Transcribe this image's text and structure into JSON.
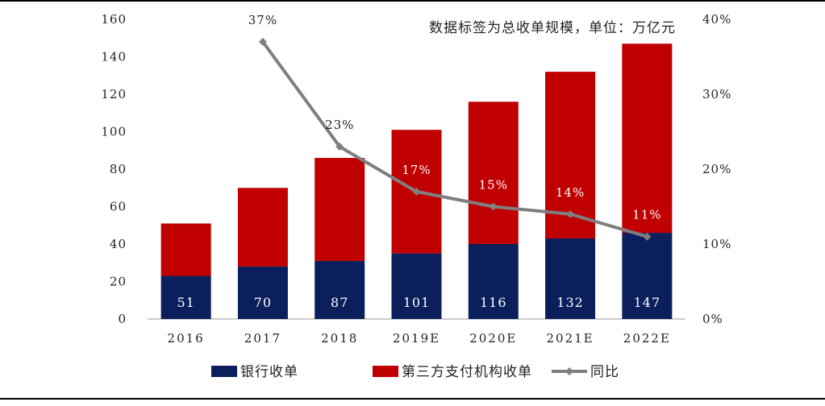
{
  "chart_data": {
    "type": "bar",
    "stacked": true,
    "note": "数据标签为总收单规模，单位：万亿元",
    "categories": [
      "2016",
      "2017",
      "2018",
      "2019E",
      "2020E",
      "2021E",
      "2022E"
    ],
    "totals": [
      "51",
      "70",
      "87",
      "101",
      "116",
      "132",
      "147"
    ],
    "series": [
      {
        "name": "银行收单",
        "kind": "bar",
        "color": "#0a1f5c",
        "values": [
          23,
          28,
          31,
          35,
          40,
          43,
          46
        ]
      },
      {
        "name": "第三方支付机构收单",
        "kind": "bar",
        "color": "#c00000",
        "values": [
          28,
          42,
          55,
          66,
          76,
          89,
          101
        ]
      },
      {
        "name": "同比",
        "kind": "line",
        "axis": "right",
        "color": "#7f7f7f",
        "values": [
          null,
          0.37,
          0.23,
          0.17,
          0.15,
          0.14,
          0.11
        ],
        "labels": [
          "",
          "37%",
          "23%",
          "17%",
          "15%",
          "14%",
          "11%"
        ]
      }
    ],
    "y_left": {
      "min": 0,
      "max": 160,
      "ticks": [
        "0",
        "20",
        "40",
        "60",
        "80",
        "100",
        "120",
        "140",
        "160"
      ]
    },
    "y_right": {
      "min": 0,
      "max": 0.4,
      "ticks": [
        "0%",
        "10%",
        "20%",
        "30%",
        "40%"
      ]
    },
    "legend_position": "bottom",
    "grid": false
  }
}
